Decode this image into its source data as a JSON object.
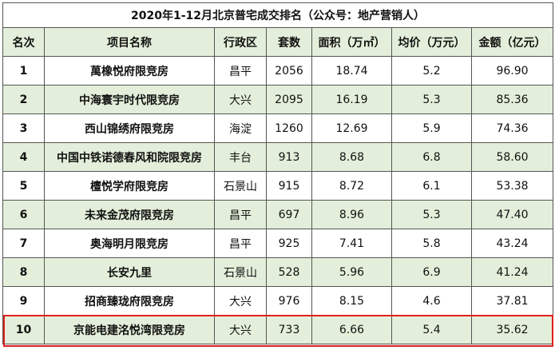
{
  "title": "2020年1-12月北京普宅成交排名（公众号：地产营销人）",
  "table": {
    "header": [
      "名次",
      "项目名称",
      "行政区",
      "套数",
      "面积（万㎡）",
      "均价（万元）",
      "金额（亿元）"
    ],
    "rows": [
      [
        "1",
        "萬橡悦府限竞房",
        "昌平",
        "2056",
        "18.74",
        "5.2",
        "96.90"
      ],
      [
        "2",
        "中海寰宇时代限竞房",
        "大兴",
        "2095",
        "16.19",
        "5.3",
        "85.36"
      ],
      [
        "3",
        "西山锦绣府限竞房",
        "海淀",
        "1260",
        "12.69",
        "5.9",
        "74.36"
      ],
      [
        "4",
        "中国中铁诺德春风和院限竞房",
        "丰台",
        "913",
        "8.68",
        "6.8",
        "58.60"
      ],
      [
        "5",
        "檀悦学府限竞房",
        "石景山",
        "915",
        "8.72",
        "6.1",
        "53.38"
      ],
      [
        "6",
        "未来金茂府限竞房",
        "昌平",
        "697",
        "8.96",
        "5.3",
        "47.40"
      ],
      [
        "7",
        "奥海明月限竞房",
        "昌平",
        "925",
        "7.41",
        "5.8",
        "43.24"
      ],
      [
        "8",
        "长安九里",
        "石景山",
        "528",
        "5.96",
        "6.9",
        "41.24"
      ],
      [
        "9",
        "招商臻珑府限竞房",
        "大兴",
        "976",
        "8.15",
        "4.6",
        "37.81"
      ],
      [
        "10",
        "京能电建洺悦湾限竞房",
        "大兴",
        "733",
        "6.66",
        "5.4",
        "35.62"
      ]
    ]
  }
}
